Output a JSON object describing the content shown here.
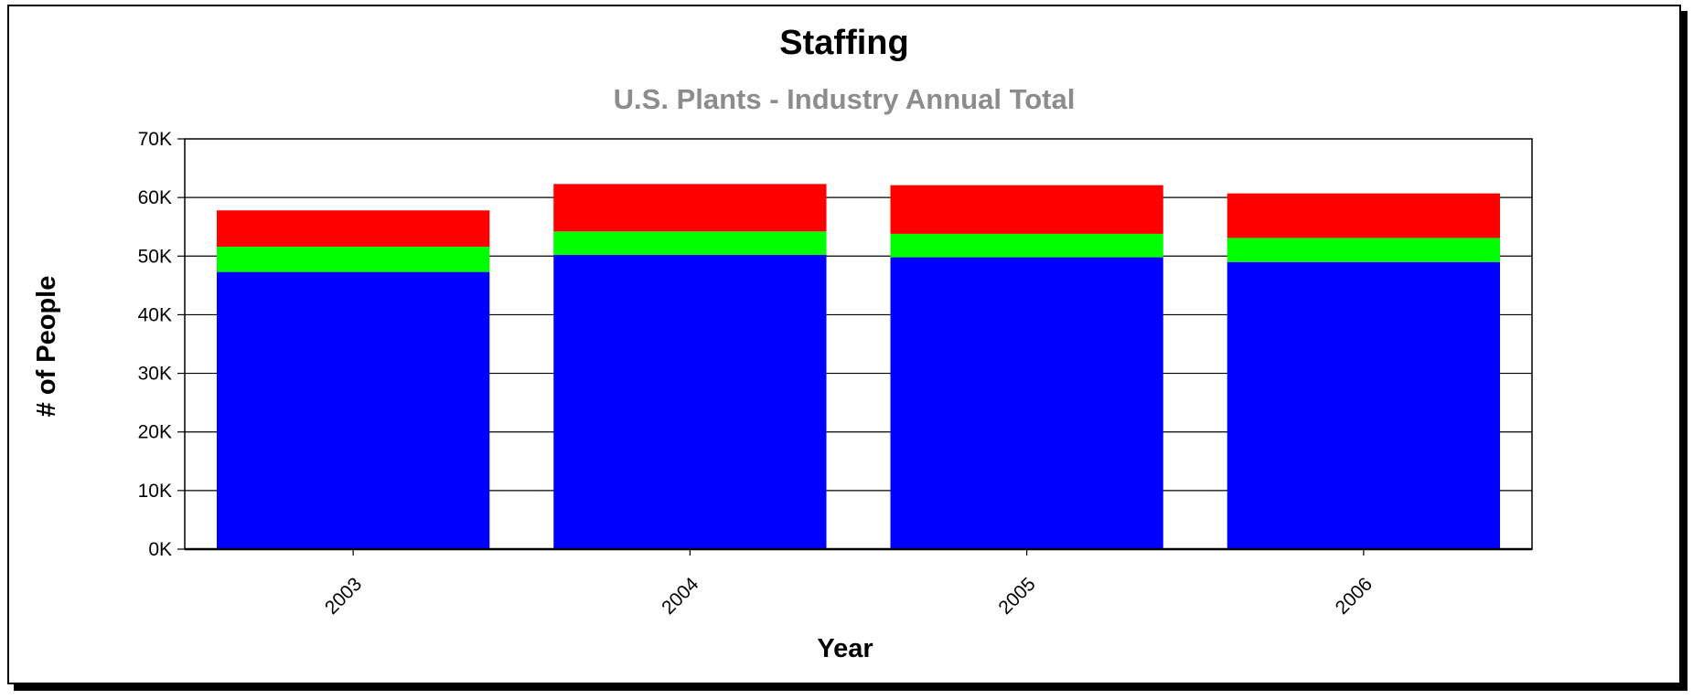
{
  "chart_data": {
    "type": "bar",
    "stacked": true,
    "title": "Staffing",
    "subtitle": "U.S. Plants -  Industry Annual Total",
    "xlabel": "Year",
    "ylabel": "# of People",
    "categories": [
      "2003",
      "2004",
      "2005",
      "2006"
    ],
    "ylim": [
      0,
      70000
    ],
    "yticks": [
      {
        "value": 0,
        "label": "0K"
      },
      {
        "value": 10000,
        "label": "10K"
      },
      {
        "value": 20000,
        "label": "20K"
      },
      {
        "value": 30000,
        "label": "30K"
      },
      {
        "value": 40000,
        "label": "40K"
      },
      {
        "value": 50000,
        "label": "50K"
      },
      {
        "value": 60000,
        "label": "60K"
      },
      {
        "value": 70000,
        "label": "70K"
      }
    ],
    "grid": "horizontal",
    "legend": "none",
    "series": [
      {
        "color": "#0000ff",
        "values": [
          47300,
          50200,
          49800,
          49000
        ]
      },
      {
        "color": "#00ff00",
        "values": [
          4300,
          4000,
          4000,
          4100
        ]
      },
      {
        "color": "#ff0000",
        "values": [
          6200,
          8100,
          8300,
          7600
        ]
      }
    ]
  }
}
